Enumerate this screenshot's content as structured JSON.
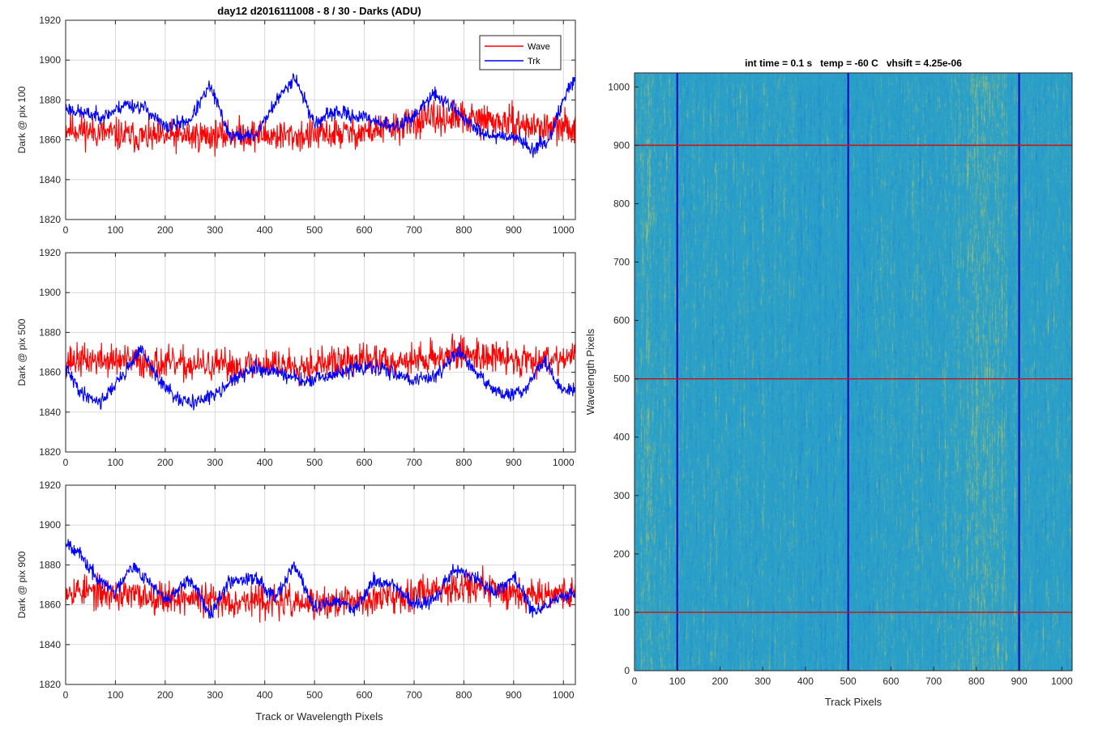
{
  "figure": {
    "suptitle": "day12 d2016111008 - 8 / 30 - Darks (ADU)",
    "bottom_xlabel": "Track or Wavelength Pixels"
  },
  "colors": {
    "wave": "#ff0000",
    "trk": "#0000ff",
    "grid": "#d9d9d9",
    "axis": "#262626",
    "heatmap_base": "#2ba0c8",
    "heatmap_yellow": "#c8c85a",
    "heatmap_blue": "#1f7fd0",
    "overlay_red": "#d01010",
    "overlay_blue": "#1010c0"
  },
  "legend": {
    "entries": [
      "Wave",
      "Trk"
    ],
    "placement": "top-right"
  },
  "chart_data": [
    {
      "type": "line",
      "ylabel": "Dark @ pix 100",
      "xlim": [
        0,
        1024
      ],
      "ylim": [
        1820,
        1920
      ],
      "xticks": [
        0,
        100,
        200,
        300,
        400,
        500,
        600,
        700,
        800,
        900,
        1000
      ],
      "yticks": [
        1820,
        1840,
        1860,
        1880,
        1900,
        1920
      ],
      "grid": true,
      "series": [
        {
          "name": "Wave",
          "color": "#ff0000",
          "anchor_x": [
            0,
            60,
            120,
            180,
            240,
            300,
            360,
            420,
            480,
            540,
            600,
            660,
            720,
            780,
            840,
            900,
            960,
            1024
          ],
          "anchor_y": [
            1866,
            1864,
            1862,
            1861,
            1862,
            1862,
            1863,
            1862,
            1862,
            1863,
            1864,
            1866,
            1870,
            1871,
            1870,
            1868,
            1866,
            1866
          ],
          "noise": 9,
          "min": 1831,
          "max": 1900,
          "seed": 11
        },
        {
          "name": "Trk",
          "color": "#0000ff",
          "anchor_x": [
            0,
            40,
            80,
            120,
            160,
            200,
            250,
            290,
            330,
            380,
            420,
            460,
            500,
            540,
            580,
            620,
            660,
            700,
            740,
            780,
            820,
            860,
            900,
            940,
            970,
            1000,
            1024
          ],
          "anchor_y": [
            1876,
            1873,
            1872,
            1878,
            1876,
            1866,
            1870,
            1887,
            1862,
            1862,
            1878,
            1892,
            1868,
            1874,
            1872,
            1870,
            1866,
            1872,
            1883,
            1876,
            1866,
            1862,
            1862,
            1855,
            1860,
            1880,
            1892
          ],
          "noise": 4,
          "min": 1841,
          "max": 1903,
          "seed": 23
        }
      ]
    },
    {
      "type": "line",
      "ylabel": "Dark @ pix 500",
      "xlim": [
        0,
        1024
      ],
      "ylim": [
        1820,
        1920
      ],
      "xticks": [
        0,
        100,
        200,
        300,
        400,
        500,
        600,
        700,
        800,
        900,
        1000
      ],
      "yticks": [
        1820,
        1840,
        1860,
        1880,
        1900,
        1920
      ],
      "grid": true,
      "series": [
        {
          "name": "Wave",
          "color": "#ff0000",
          "anchor_x": [
            0,
            100,
            200,
            300,
            400,
            500,
            600,
            700,
            800,
            900,
            1024
          ],
          "anchor_y": [
            1866,
            1866,
            1864,
            1863,
            1864,
            1864,
            1866,
            1866,
            1870,
            1866,
            1868
          ],
          "noise": 9,
          "min": 1838,
          "max": 1904,
          "seed": 37
        },
        {
          "name": "Trk",
          "color": "#0000ff",
          "anchor_x": [
            0,
            30,
            70,
            120,
            150,
            190,
            230,
            280,
            330,
            380,
            430,
            480,
            530,
            580,
            620,
            660,
            700,
            740,
            790,
            830,
            880,
            920,
            960,
            1000,
            1024
          ],
          "anchor_y": [
            1862,
            1850,
            1845,
            1860,
            1872,
            1855,
            1845,
            1846,
            1855,
            1862,
            1860,
            1855,
            1858,
            1862,
            1862,
            1860,
            1856,
            1858,
            1870,
            1858,
            1848,
            1850,
            1866,
            1850,
            1852
          ],
          "noise": 4,
          "min": 1829,
          "max": 1886,
          "seed": 41
        }
      ]
    },
    {
      "type": "line",
      "ylabel": "Dark @ pix 900",
      "xlim": [
        0,
        1024
      ],
      "ylim": [
        1820,
        1920
      ],
      "xticks": [
        0,
        100,
        200,
        300,
        400,
        500,
        600,
        700,
        800,
        900,
        1000
      ],
      "yticks": [
        1820,
        1840,
        1860,
        1880,
        1900,
        1920
      ],
      "grid": true,
      "xlabel": "Track or Wavelength Pixels",
      "series": [
        {
          "name": "Wave",
          "color": "#ff0000",
          "anchor_x": [
            0,
            100,
            200,
            300,
            400,
            500,
            600,
            700,
            800,
            900,
            1024
          ],
          "anchor_y": [
            1868,
            1865,
            1864,
            1862,
            1862,
            1860,
            1862,
            1866,
            1870,
            1866,
            1866
          ],
          "noise": 9,
          "min": 1825,
          "max": 1917,
          "seed": 53
        },
        {
          "name": "Trk",
          "color": "#0000ff",
          "anchor_x": [
            0,
            20,
            60,
            100,
            130,
            160,
            200,
            250,
            290,
            330,
            380,
            420,
            460,
            500,
            540,
            580,
            620,
            660,
            700,
            740,
            780,
            820,
            860,
            900,
            940,
            980,
            1024
          ],
          "anchor_y": [
            1892,
            1888,
            1874,
            1866,
            1880,
            1874,
            1862,
            1872,
            1856,
            1872,
            1874,
            1864,
            1880,
            1858,
            1862,
            1858,
            1872,
            1870,
            1860,
            1862,
            1878,
            1874,
            1866,
            1874,
            1856,
            1862,
            1866
          ],
          "noise": 4,
          "min": 1838,
          "max": 1901,
          "seed": 67
        }
      ]
    },
    {
      "type": "heatmap",
      "title": "int time = 0.1 s   temp = -60 C   vhsift = 4.25e-06",
      "xlabel": "Track Pixels",
      "ylabel": "Wavelength Pixels",
      "xlim": [
        0,
        1024
      ],
      "ylim": [
        0,
        1024
      ],
      "xticks": [
        0,
        100,
        200,
        300,
        400,
        500,
        600,
        700,
        800,
        900,
        1000
      ],
      "yticks": [
        0,
        100,
        200,
        300,
        400,
        500,
        600,
        700,
        800,
        900,
        1000
      ],
      "horizontal_lines_y": [
        100,
        500,
        900
      ],
      "vertical_lines_x": [
        100,
        500,
        900
      ],
      "brighter_regions_x": [
        [
          760,
          880
        ],
        [
          0,
          60
        ]
      ]
    }
  ]
}
